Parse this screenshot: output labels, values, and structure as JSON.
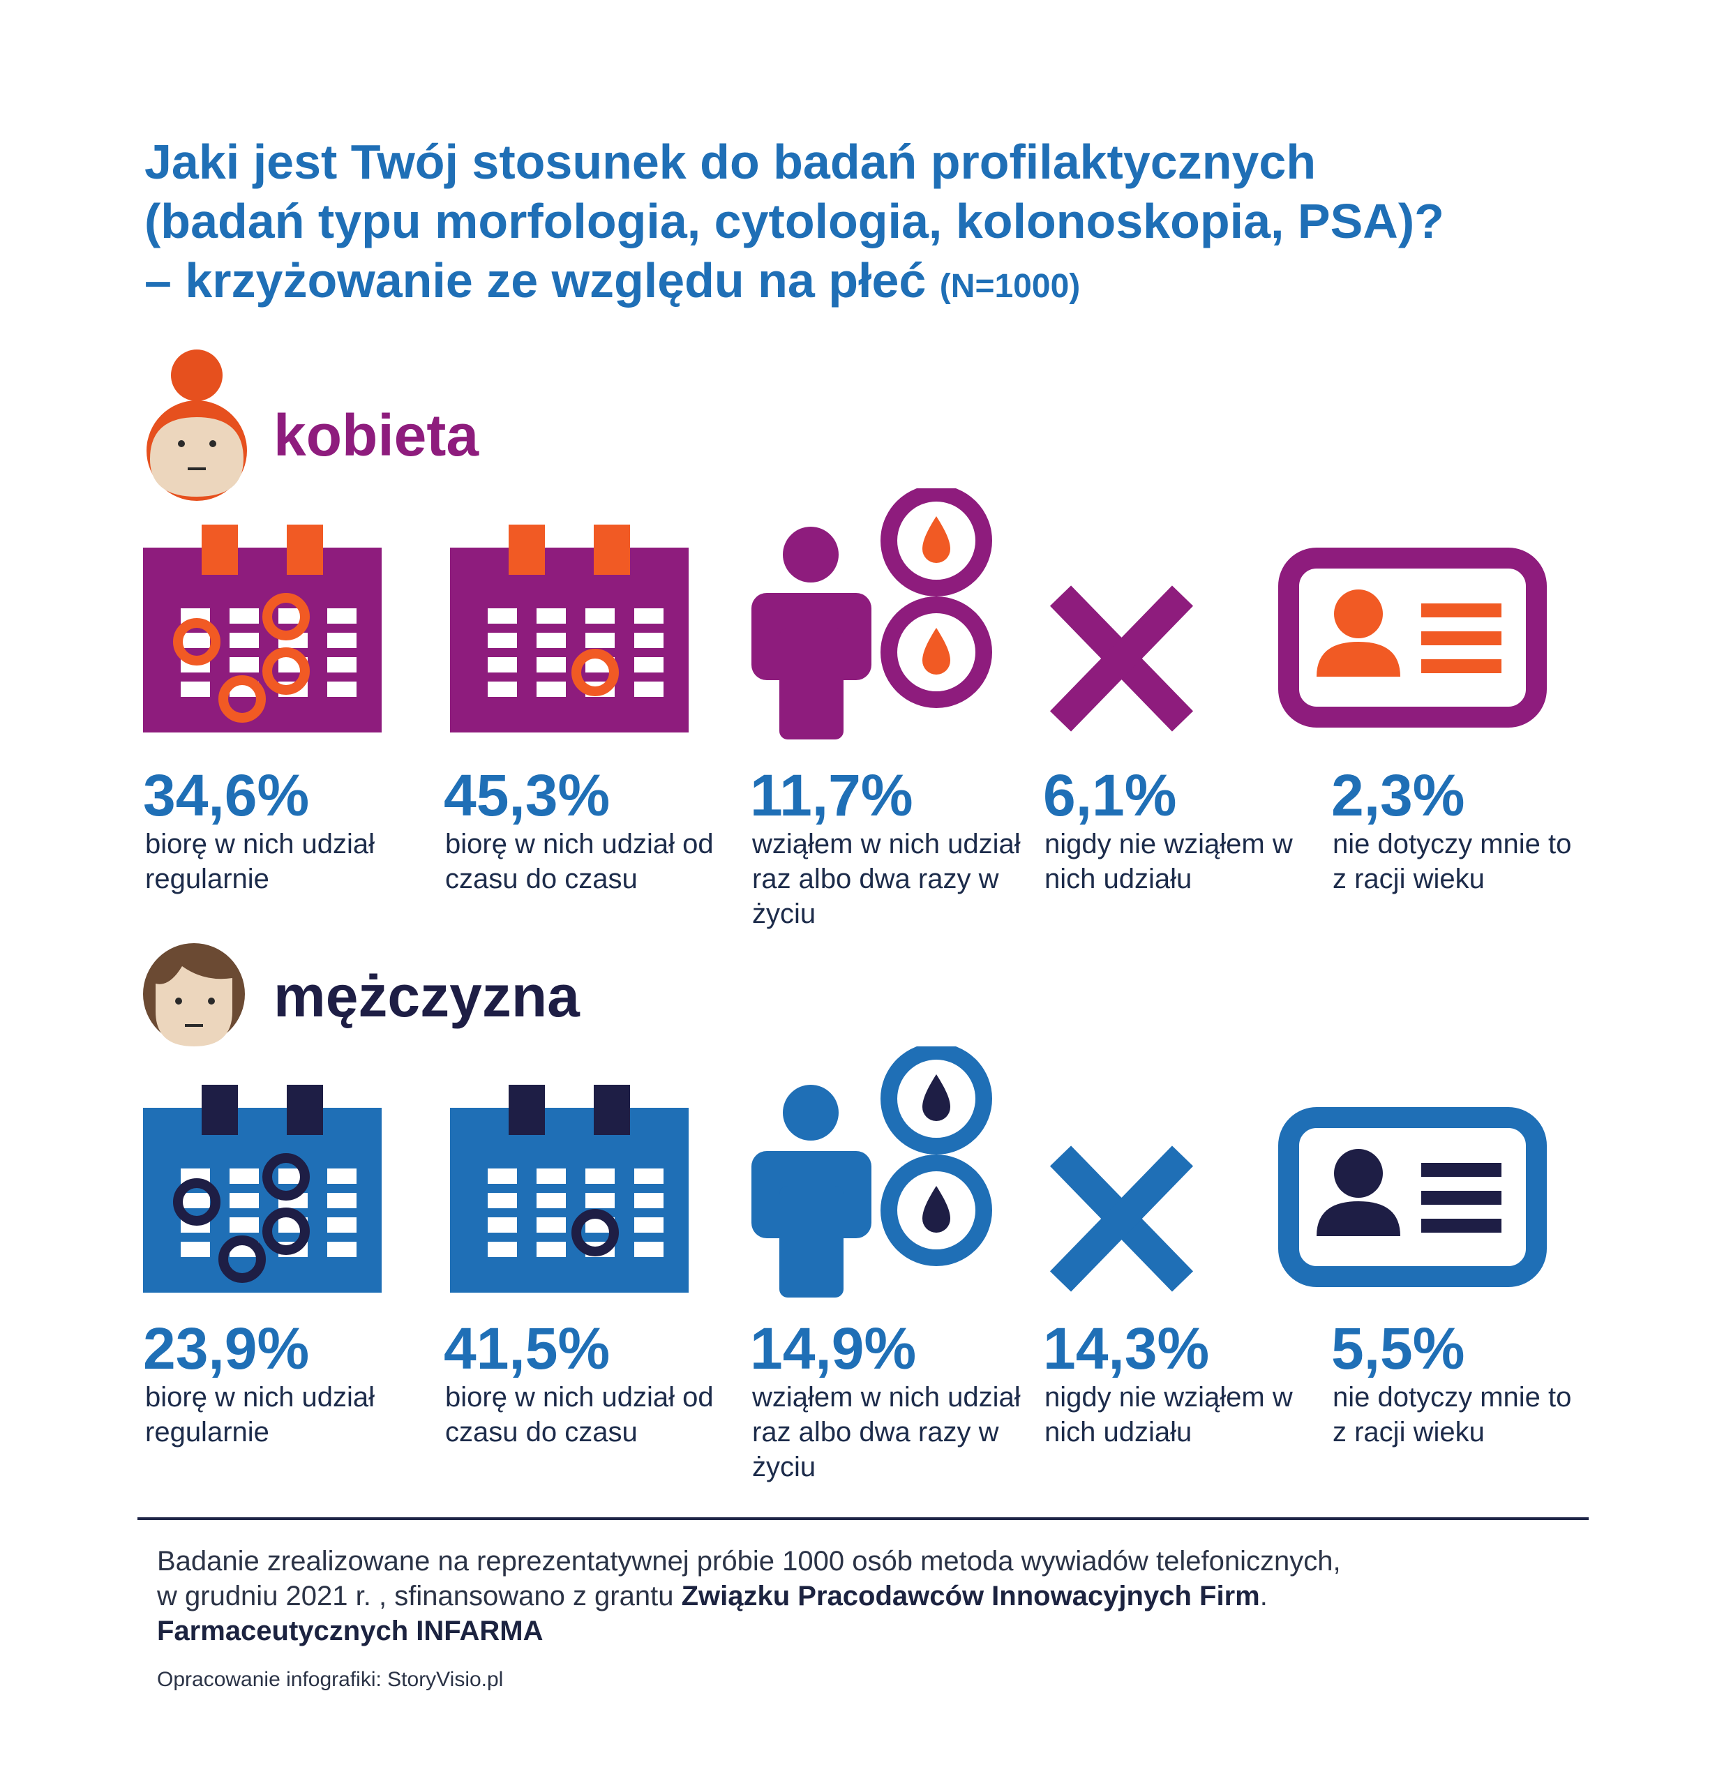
{
  "title": {
    "line1": "Jaki jest Twój stosunek do badań profilaktycznych",
    "line2": "(badań typu morfologia, cytologia, kolonoskopia, PSA)?",
    "line3": "– krzyżowanie ze względu na płeć",
    "n": "(N=1000)"
  },
  "colors": {
    "blue": "#1f6fb6",
    "purple": "#8e1c7d",
    "orange": "#f15a24",
    "navy": "#1e1e45",
    "skin": "#ecd6bd",
    "hair_female": "#e6501e",
    "hair_male": "#6b4a33"
  },
  "icons": [
    "calendar-many-marks-icon",
    "calendar-single-mark-icon",
    "person-blood-drops-icon",
    "cross-icon",
    "id-card-icon"
  ],
  "groups": {
    "female": {
      "label": "kobieta",
      "items": [
        {
          "value": "34,6%",
          "desc": "biorę w nich udział regularnie"
        },
        {
          "value": "45,3%",
          "desc": "biorę w nich udział od czasu do czasu"
        },
        {
          "value": "11,7%",
          "desc": "wziąłem w nich udział raz albo dwa razy w życiu"
        },
        {
          "value": "6,1%",
          "desc": "nigdy nie wziąłem w nich udziału"
        },
        {
          "value": "2,3%",
          "desc": "nie dotyczy mnie to z racji wieku"
        }
      ]
    },
    "male": {
      "label": "mężczyzna",
      "items": [
        {
          "value": "23,9%",
          "desc": "biorę w nich udział regularnie"
        },
        {
          "value": "41,5%",
          "desc": "biorę w nich udział od czasu do czasu"
        },
        {
          "value": "14,9%",
          "desc": "wziąłem w nich udział raz albo dwa razy w życiu"
        },
        {
          "value": "14,3%",
          "desc": "nigdy nie wziąłem w nich udziału"
        },
        {
          "value": "5,5%",
          "desc": "nie dotyczy mnie to z racji wieku"
        }
      ]
    }
  },
  "chart_data": {
    "type": "bar",
    "title": "Jaki jest Twój stosunek do badań profilaktycznych (badań typu morfologia, cytologia, kolonoskopia, PSA)? – krzyżowanie ze względu na płeć (N=1000)",
    "categories": [
      "biorę w nich udział regularnie",
      "biorę w nich udział od czasu do czasu",
      "wziąłem w nich udział raz albo dwa razy w życiu",
      "nigdy nie wziąłem w nich udziału",
      "nie dotyczy mnie to z racji wieku"
    ],
    "series": [
      {
        "name": "kobieta",
        "values": [
          34.6,
          45.3,
          11.7,
          6.1,
          2.3
        ]
      },
      {
        "name": "mężczyzna",
        "values": [
          23.9,
          41.5,
          14.9,
          14.3,
          5.5
        ]
      }
    ],
    "unit": "%"
  },
  "footer": {
    "line1": "Badanie zrealizowane na reprezentatywnej próbie 1000 osób metoda wywiadów telefonicznych,",
    "line2_a": "w grudniu 2021 r. , sfinansowano z grantu ",
    "line2_bold": "Związku Pracodawców Innowacyjnych Firm",
    "line2_end": ".",
    "line3_bold": "Farmaceutycznych INFARMA",
    "credit": "Opracowanie infografiki: StoryVisio.pl"
  }
}
